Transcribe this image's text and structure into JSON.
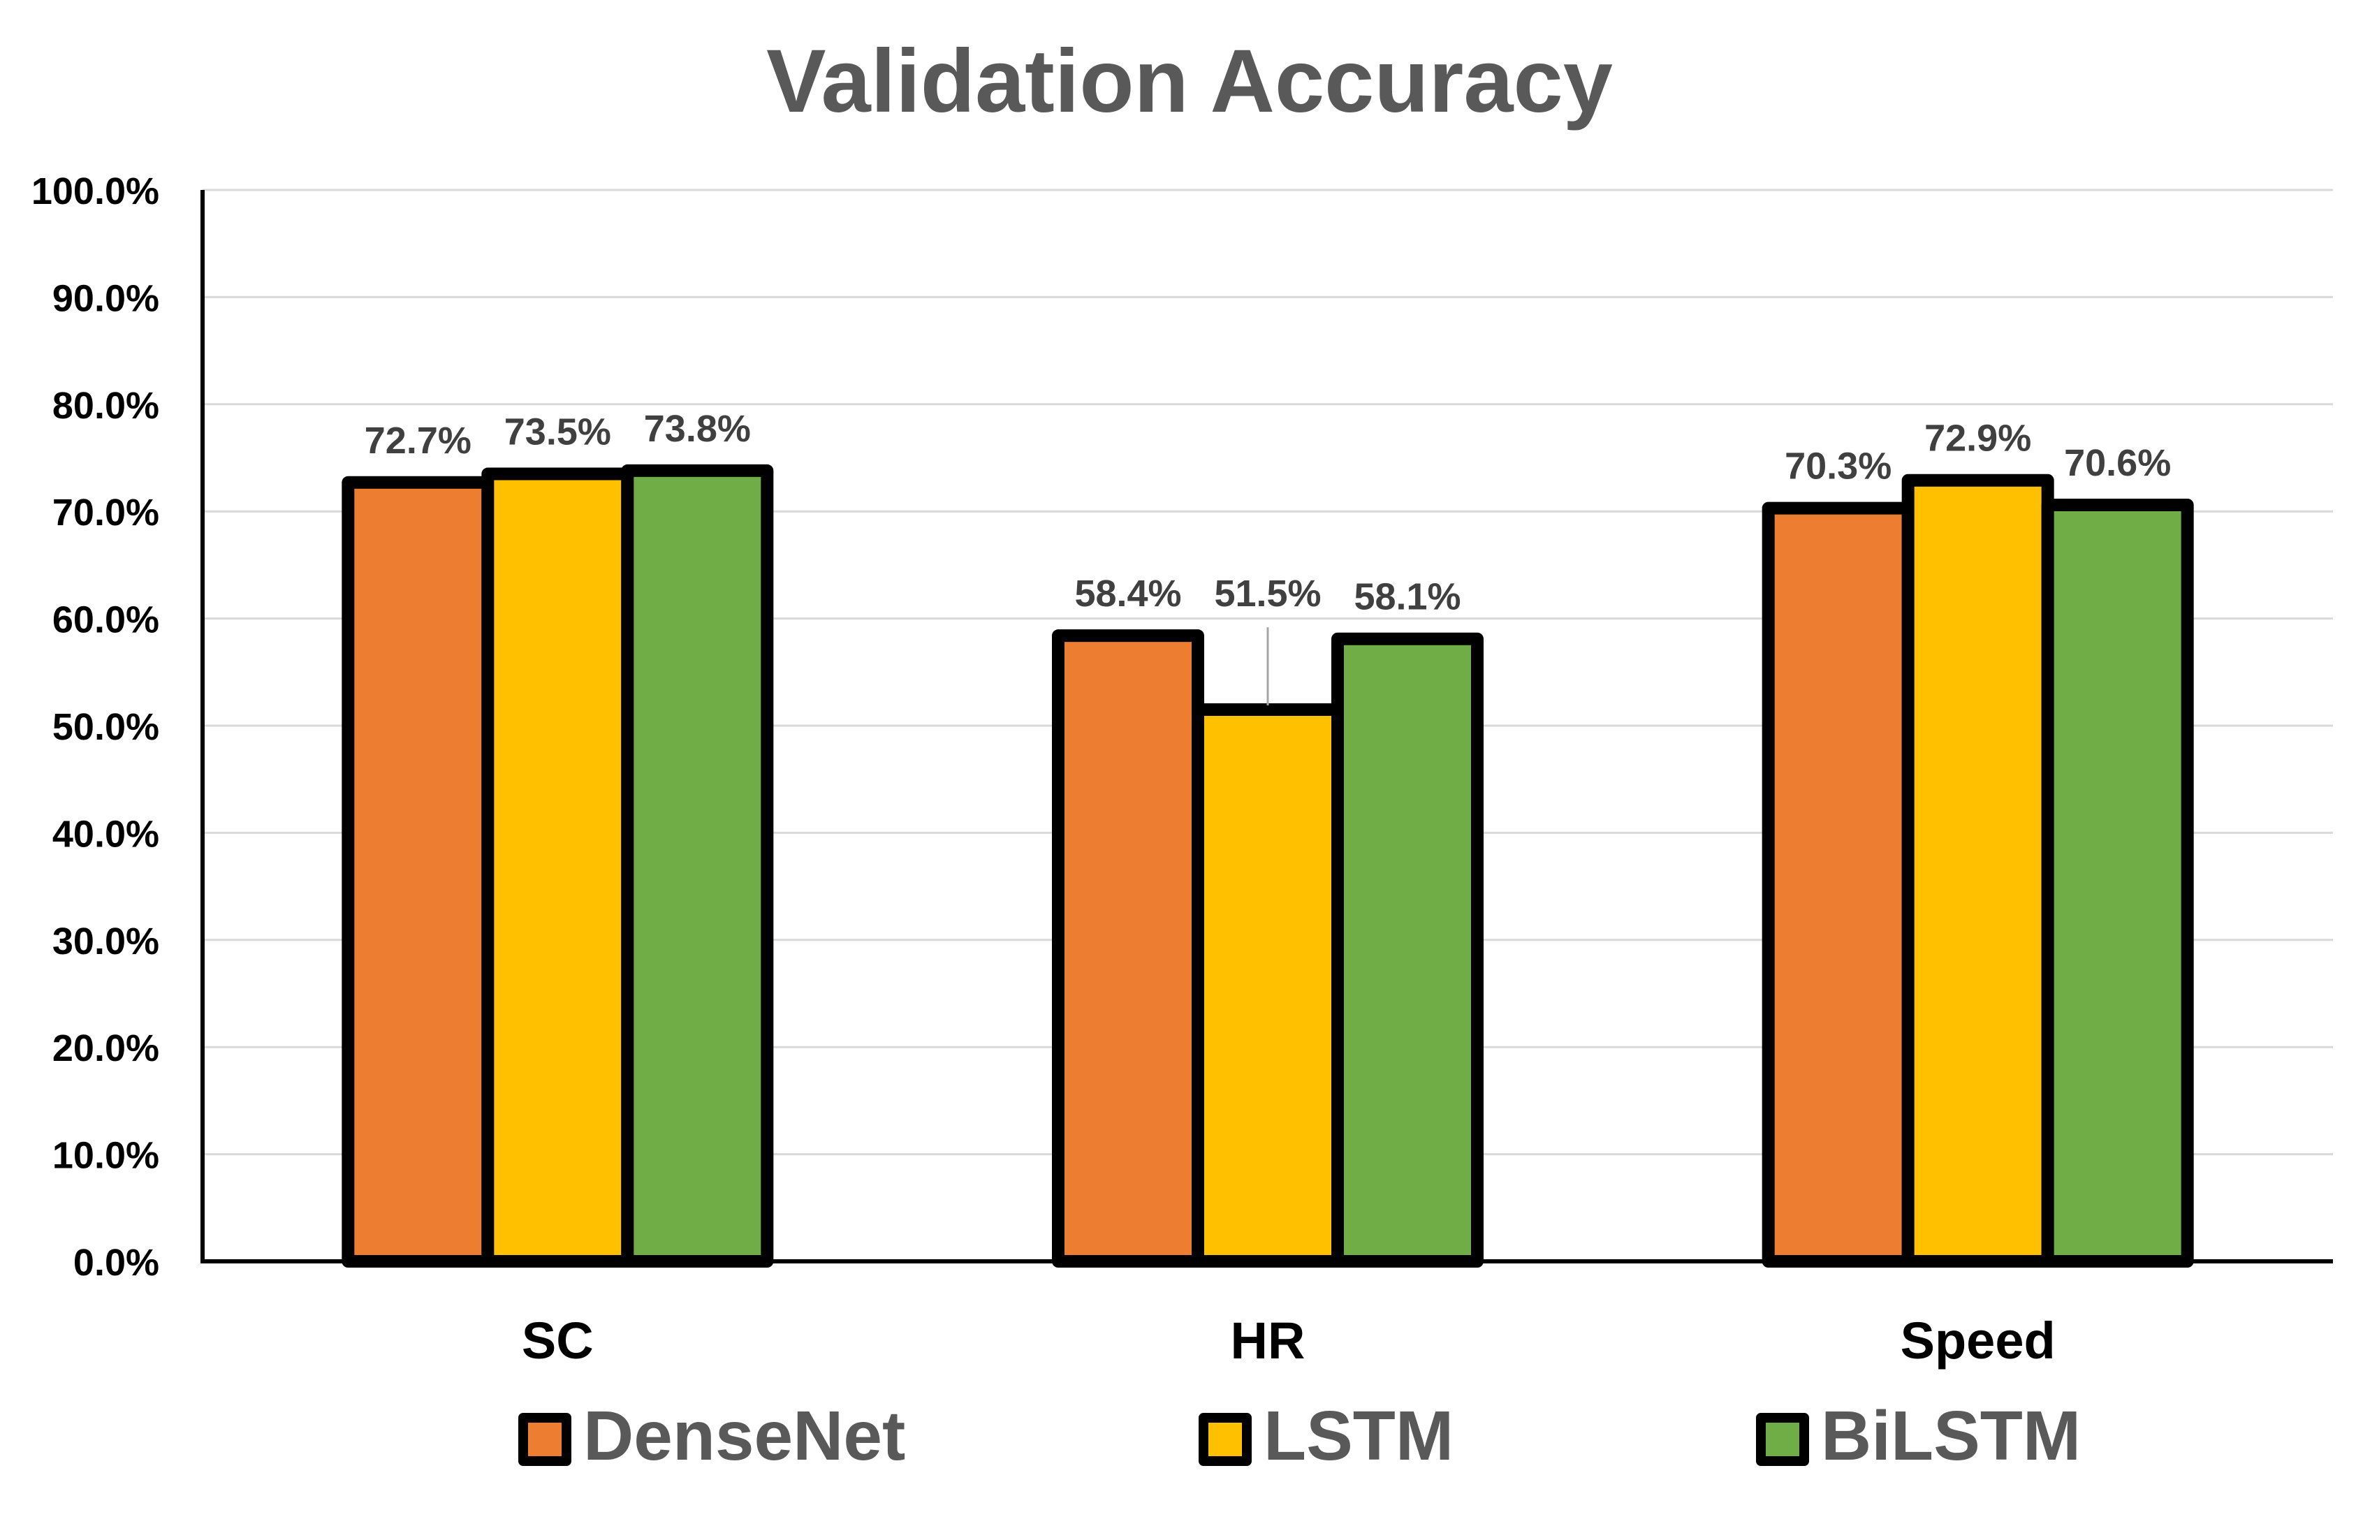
{
  "chart_data": {
    "type": "bar",
    "title": "Validation Accuracy",
    "xlabel": "",
    "ylabel": "",
    "categories": [
      "SC",
      "HR",
      "Speed"
    ],
    "series": [
      {
        "name": "DenseNet",
        "values": [
          72.7,
          58.4,
          70.3
        ],
        "labels": [
          "72.7%",
          "58.4%",
          "70.3%"
        ],
        "color": "#ED7D31"
      },
      {
        "name": "LSTM",
        "values": [
          73.5,
          51.5,
          72.9
        ],
        "labels": [
          "73.5%",
          "51.5%",
          "72.9%"
        ],
        "color": "#FFC000"
      },
      {
        "name": "BiLSTM",
        "values": [
          73.8,
          58.1,
          70.6
        ],
        "labels": [
          "73.8%",
          "58.1%",
          "70.6%"
        ],
        "color": "#70AD47"
      }
    ],
    "ylim": [
      0,
      100
    ],
    "yticks": [
      0,
      10,
      20,
      30,
      40,
      50,
      60,
      70,
      80,
      90,
      100
    ],
    "ytick_labels": [
      "0.0%",
      "10.0%",
      "20.0%",
      "30.0%",
      "40.0%",
      "50.0%",
      "60.0%",
      "70.0%",
      "80.0%",
      "90.0%",
      "100.0%"
    ],
    "grid": true,
    "legend_position": "bottom",
    "colors": {
      "title": "#595959",
      "axis_text": "#000000",
      "data_label": "#404040",
      "legend_text": "#595959",
      "gridline": "#D9D9D9",
      "bar_outline": "#000000"
    }
  }
}
